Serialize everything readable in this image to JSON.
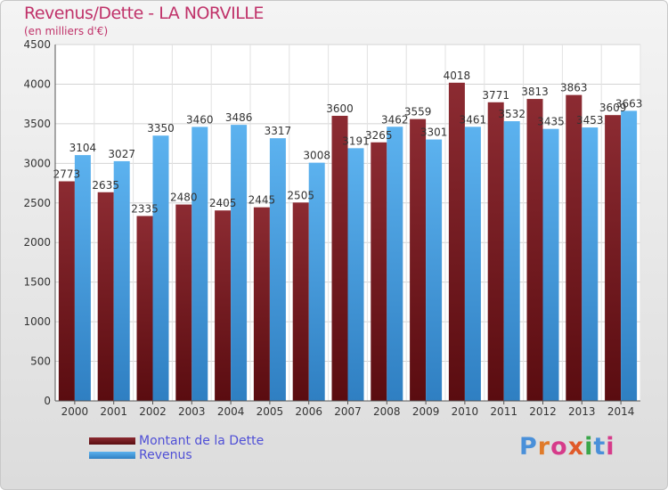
{
  "header": {
    "title": "Revenus/Dette - LA NORVILLE",
    "subtitle": "(en milliers d'€)"
  },
  "legend": {
    "items": [
      {
        "label": "Montant de la Dette",
        "color": "#7a2228"
      },
      {
        "label": "Revenus",
        "color": "#4da3e4"
      }
    ]
  },
  "brand": {
    "text": "Proxiti",
    "colors": [
      "#4a90d9",
      "#e07b2a",
      "#d63b8a",
      "#e05a2a",
      "#3aa64a",
      "#4a90d9",
      "#d63b8a"
    ]
  },
  "chart_data": {
    "type": "bar",
    "title": "Revenus/Dette - LA NORVILLE",
    "subtitle": "(en milliers d'€)",
    "xlabel": "",
    "ylabel": "",
    "ylim": [
      0,
      4500
    ],
    "yticks": [
      0,
      500,
      1000,
      1500,
      2000,
      2500,
      3000,
      3500,
      4000,
      4500
    ],
    "grid": true,
    "legend_position": "bottom-left",
    "categories": [
      "2000",
      "2001",
      "2002",
      "2003",
      "2004",
      "2005",
      "2006",
      "2007",
      "2008",
      "2009",
      "2010",
      "2011",
      "2012",
      "2013",
      "2014"
    ],
    "series": [
      {
        "name": "Montant de la Dette",
        "color": "#7a2228",
        "values": [
          2773,
          2635,
          2335,
          2480,
          2405,
          2445,
          2505,
          3600,
          3265,
          3559,
          4018,
          3771,
          3813,
          3863,
          3609
        ],
        "labels": [
          "2773",
          "2635",
          "2335",
          "2480",
          "2405",
          "2445",
          "2505",
          "3600",
          "3265",
          "3559",
          "4018",
          "3771",
          "3813",
          "3863",
          "3609"
        ]
      },
      {
        "name": "Revenus",
        "color": "#4da3e4",
        "values": [
          3104,
          3027,
          3350,
          3460,
          3486,
          3317,
          3008,
          3191,
          3462,
          3301,
          3461,
          3532,
          3435,
          3453,
          3663
        ],
        "labels": [
          "3104",
          "3027",
          "3350",
          "3460",
          "3486",
          "3317",
          "3008",
          "3191",
          "3462",
          "3301",
          "3461",
          "3532",
          "3435",
          "3453",
          "3663"
        ]
      }
    ]
  }
}
